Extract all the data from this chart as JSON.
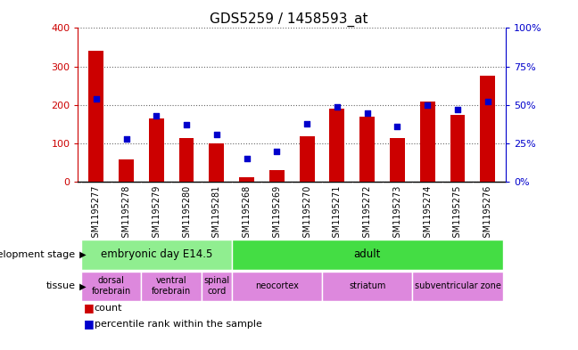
{
  "title": "GDS5259 / 1458593_at",
  "samples": [
    "GSM1195277",
    "GSM1195278",
    "GSM1195279",
    "GSM1195280",
    "GSM1195281",
    "GSM1195268",
    "GSM1195269",
    "GSM1195270",
    "GSM1195271",
    "GSM1195272",
    "GSM1195273",
    "GSM1195274",
    "GSM1195275",
    "GSM1195276"
  ],
  "counts": [
    340,
    58,
    165,
    115,
    100,
    12,
    32,
    118,
    190,
    170,
    115,
    210,
    175,
    275
  ],
  "percentiles": [
    54,
    28,
    43,
    37,
    31,
    15,
    20,
    38,
    49,
    45,
    36,
    50,
    47,
    52
  ],
  "ylim_left": [
    0,
    400
  ],
  "ylim_right": [
    0,
    100
  ],
  "yticks_left": [
    0,
    100,
    200,
    300,
    400
  ],
  "yticks_right": [
    0,
    25,
    50,
    75,
    100
  ],
  "bar_color": "#cc0000",
  "dot_color": "#0000cc",
  "plot_bg": "#ffffff",
  "xtick_bg": "#c8c8c8",
  "grid_color": "#000000",
  "dev_stages": [
    {
      "label": "embryonic day E14.5",
      "start": 0,
      "end": 4,
      "color": "#90ee90"
    },
    {
      "label": "adult",
      "start": 5,
      "end": 13,
      "color": "#44dd44"
    }
  ],
  "tissues": [
    {
      "label": "dorsal\nforebrain",
      "start": 0,
      "end": 1,
      "color": "#dd88dd"
    },
    {
      "label": "ventral\nforebrain",
      "start": 2,
      "end": 3,
      "color": "#dd88dd"
    },
    {
      "label": "spinal\ncord",
      "start": 4,
      "end": 4,
      "color": "#dd88dd"
    },
    {
      "label": "neocortex",
      "start": 5,
      "end": 7,
      "color": "#dd88dd"
    },
    {
      "label": "striatum",
      "start": 8,
      "end": 10,
      "color": "#dd88dd"
    },
    {
      "label": "subventricular zone",
      "start": 11,
      "end": 13,
      "color": "#dd88dd"
    }
  ],
  "xlabel_devstage": "development stage",
  "xlabel_tissue": "tissue",
  "legend_count": "count",
  "legend_pct": "percentile rank within the sample",
  "axis_label_color_left": "#cc0000",
  "axis_label_color_right": "#0000cc",
  "tick_label_fontsize": 7,
  "title_fontsize": 11,
  "bar_width": 0.5
}
